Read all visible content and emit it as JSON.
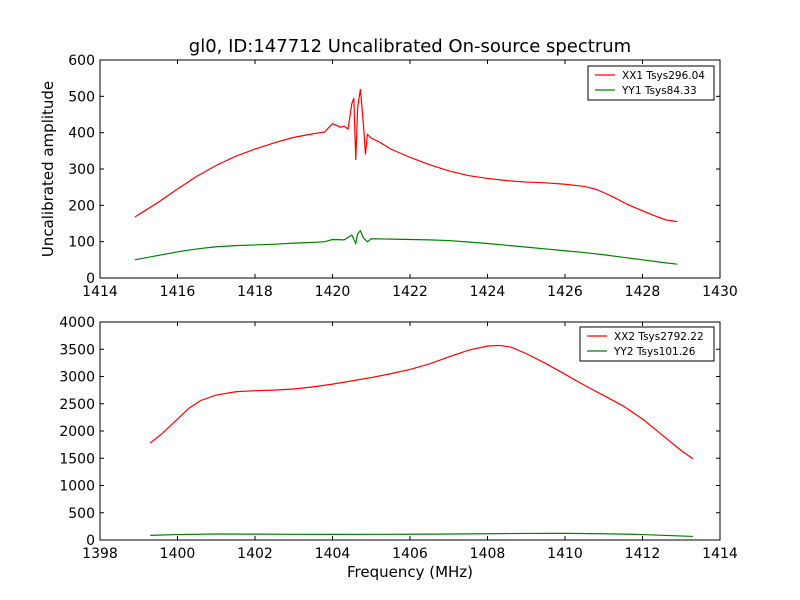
{
  "chart_data": [
    {
      "type": "line",
      "title": "gl0, ID:147712 Uncalibrated On-source spectrum",
      "xlabel": "",
      "ylabel": "Uncalibrated amplitude",
      "xlim": [
        1414,
        1430
      ],
      "ylim": [
        0,
        600
      ],
      "xticks": [
        1414,
        1416,
        1418,
        1420,
        1422,
        1424,
        1426,
        1428,
        1430
      ],
      "yticks": [
        0,
        100,
        200,
        300,
        400,
        500,
        600
      ],
      "legend_position": "top-right",
      "series": [
        {
          "name": "XX1 Tsys296.04",
          "color": "#ff0000",
          "x": [
            1414.9,
            1415.2,
            1415.5,
            1416.0,
            1416.5,
            1417.0,
            1417.5,
            1418.0,
            1418.5,
            1419.0,
            1419.5,
            1419.8,
            1420.0,
            1420.1,
            1420.2,
            1420.3,
            1420.4,
            1420.5,
            1420.55,
            1420.6,
            1420.65,
            1420.72,
            1420.8,
            1420.85,
            1420.9,
            1420.95,
            1421.0,
            1421.2,
            1421.5,
            1422.0,
            1422.5,
            1423.0,
            1423.5,
            1424.0,
            1424.5,
            1425.0,
            1425.5,
            1426.0,
            1426.5,
            1426.8,
            1427.0,
            1427.3,
            1427.6,
            1428.0,
            1428.3,
            1428.6,
            1428.9
          ],
          "values": [
            168,
            188,
            208,
            245,
            280,
            310,
            335,
            355,
            372,
            387,
            397,
            402,
            425,
            420,
            415,
            418,
            410,
            480,
            495,
            325,
            470,
            520,
            420,
            340,
            395,
            390,
            385,
            375,
            355,
            332,
            312,
            295,
            282,
            274,
            268,
            264,
            262,
            258,
            252,
            244,
            235,
            220,
            203,
            185,
            172,
            160,
            155
          ]
        },
        {
          "name": "YY1 Tsys84.33",
          "color": "#008000",
          "x": [
            1414.9,
            1415.5,
            1416.0,
            1416.5,
            1417.0,
            1417.5,
            1418.0,
            1418.5,
            1419.0,
            1419.5,
            1419.8,
            1420.0,
            1420.3,
            1420.5,
            1420.6,
            1420.65,
            1420.72,
            1420.8,
            1420.9,
            1421.0,
            1421.5,
            1422.0,
            1422.5,
            1423.0,
            1423.5,
            1424.0,
            1424.5,
            1425.0,
            1425.5,
            1426.0,
            1426.5,
            1427.0,
            1427.5,
            1428.0,
            1428.5,
            1428.9
          ],
          "values": [
            50,
            62,
            72,
            80,
            86,
            89,
            91,
            93,
            96,
            98,
            100,
            106,
            105,
            118,
            95,
            122,
            130,
            110,
            100,
            108,
            107,
            106,
            105,
            103,
            99,
            95,
            90,
            85,
            80,
            75,
            70,
            64,
            57,
            50,
            43,
            38
          ]
        }
      ]
    },
    {
      "type": "line",
      "title": "",
      "xlabel": "Frequency (MHz)",
      "ylabel": "",
      "xlim": [
        1398,
        1414
      ],
      "ylim": [
        0,
        4000
      ],
      "xticks": [
        1398,
        1400,
        1402,
        1404,
        1406,
        1408,
        1410,
        1412,
        1414
      ],
      "yticks": [
        0,
        500,
        1000,
        1500,
        2000,
        2500,
        3000,
        3500,
        4000
      ],
      "legend_position": "top-right",
      "series": [
        {
          "name": "XX2 Tsys2792.22",
          "color": "#ff0000",
          "x": [
            1399.3,
            1399.6,
            1400.0,
            1400.3,
            1400.6,
            1401.0,
            1401.5,
            1402.0,
            1402.5,
            1403.0,
            1403.5,
            1404.0,
            1404.5,
            1405.0,
            1405.5,
            1406.0,
            1406.5,
            1407.0,
            1407.5,
            1408.0,
            1408.3,
            1408.6,
            1409.0,
            1409.5,
            1410.0,
            1410.5,
            1411.0,
            1411.5,
            1412.0,
            1412.5,
            1413.0,
            1413.3
          ],
          "values": [
            1780,
            1950,
            2220,
            2420,
            2560,
            2660,
            2720,
            2740,
            2750,
            2770,
            2810,
            2860,
            2920,
            2980,
            3050,
            3130,
            3230,
            3360,
            3480,
            3560,
            3570,
            3540,
            3420,
            3240,
            3040,
            2840,
            2650,
            2460,
            2220,
            1930,
            1640,
            1490
          ]
        },
        {
          "name": "YY2 Tsys101.26",
          "color": "#008000",
          "x": [
            1399.3,
            1400.0,
            1401.0,
            1402.0,
            1403.0,
            1404.0,
            1405.0,
            1406.0,
            1407.0,
            1408.0,
            1409.0,
            1410.0,
            1411.0,
            1412.0,
            1413.3
          ],
          "values": [
            85,
            100,
            110,
            108,
            104,
            103,
            104,
            106,
            110,
            115,
            120,
            122,
            115,
            100,
            65
          ]
        }
      ]
    }
  ]
}
